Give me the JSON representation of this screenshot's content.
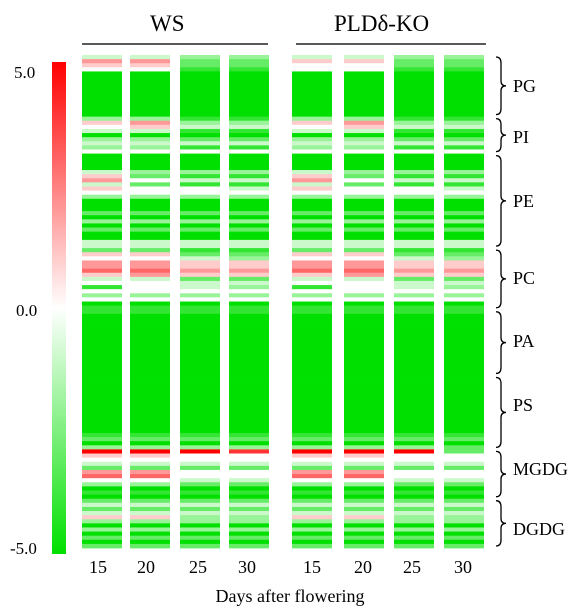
{
  "chart_data": {
    "type": "heatmap",
    "groups": [
      "WS",
      "PLDδ-KO"
    ],
    "columns": [
      "15",
      "20",
      "25",
      "30",
      "15",
      "20",
      "25",
      "30"
    ],
    "xlabel": "Days after flowering",
    "colorbar": {
      "min": -5.0,
      "max": 5.0,
      "ticks": [
        "5.0",
        "0.0",
        "-5.0"
      ],
      "low_color": "#00e000",
      "mid_color": "#ffffff",
      "high_color": "#ff0000"
    },
    "row_count": 120,
    "classes": [
      {
        "name": "PG",
        "rows": [
          0,
          15
        ]
      },
      {
        "name": "PI",
        "rows": [
          15,
          24
        ]
      },
      {
        "name": "PE",
        "rows": [
          24,
          47
        ]
      },
      {
        "name": "PC",
        "rows": [
          47,
          62
        ]
      },
      {
        "name": "PA",
        "rows": [
          62,
          78
        ]
      },
      {
        "name": "PS",
        "rows": [
          78,
          96
        ]
      },
      {
        "name": "MGDG",
        "rows": [
          96,
          108
        ]
      },
      {
        "name": "DGDG",
        "rows": [
          108,
          120
        ]
      }
    ],
    "values_default": -5,
    "cells": [
      {
        "r": 0,
        "v": [
          -1,
          -1,
          -2,
          -2,
          -1,
          -1,
          -2,
          -2
        ]
      },
      {
        "r": 1,
        "v": [
          2,
          2,
          -3,
          -3,
          1,
          1,
          -3,
          -3
        ]
      },
      {
        "r": 2,
        "v": [
          1,
          1,
          -3,
          -3,
          0,
          0,
          -3,
          -3
        ]
      },
      {
        "r": 3,
        "v": [
          0,
          0,
          -4,
          -4,
          0,
          0,
          -4,
          -4
        ]
      },
      {
        "r": 15,
        "v": [
          -2,
          -2,
          -4,
          -4,
          -2,
          -2,
          -4,
          -4
        ]
      },
      {
        "r": 16,
        "v": [
          1,
          2,
          -2,
          -2,
          1,
          2,
          -2,
          -2
        ]
      },
      {
        "r": 17,
        "v": [
          0,
          1,
          -1,
          -1,
          0,
          1,
          -1,
          -1
        ]
      },
      {
        "r": 18,
        "v": [
          -1,
          -1,
          -4,
          -4,
          -1,
          -1,
          -4,
          -4
        ]
      },
      {
        "r": 20,
        "v": [
          -2,
          -2,
          -3,
          -3,
          -2,
          -2,
          -3,
          -3
        ]
      },
      {
        "r": 21,
        "v": [
          -1,
          -1,
          -1,
          -1,
          -1,
          -1,
          -1,
          -1
        ]
      },
      {
        "r": 22,
        "v": [
          -2,
          -2,
          -4,
          -4,
          -2,
          -2,
          -4,
          -4
        ]
      },
      {
        "r": 23,
        "v": [
          0,
          0,
          0,
          0,
          0,
          0,
          0,
          0
        ]
      },
      {
        "r": 28,
        "v": [
          -1,
          -2,
          -2,
          -2,
          -1,
          -2,
          -2,
          -2
        ]
      },
      {
        "r": 29,
        "v": [
          1,
          -3,
          -4,
          -4,
          1,
          -3,
          -4,
          -4
        ]
      },
      {
        "r": 30,
        "v": [
          2,
          0,
          -1,
          -1,
          2,
          0,
          -1,
          -1
        ]
      },
      {
        "r": 31,
        "v": [
          -1,
          -3,
          -4,
          -4,
          -1,
          -3,
          -4,
          -4
        ]
      },
      {
        "r": 32,
        "v": [
          1,
          0,
          0,
          -1,
          1,
          0,
          0,
          -1
        ]
      },
      {
        "r": 33,
        "v": [
          0,
          0,
          0,
          0,
          0,
          0,
          0,
          0
        ]
      },
      {
        "r": 34,
        "v": [
          -2,
          -2,
          -2,
          -2,
          -2,
          -2,
          -2,
          -2
        ]
      },
      {
        "r": 38,
        "v": [
          -3,
          -3,
          -3,
          -3,
          -3,
          -3,
          -3,
          -3
        ]
      },
      {
        "r": 40,
        "v": [
          -2,
          -2,
          -2,
          -2,
          -2,
          -2,
          -2,
          -2
        ]
      },
      {
        "r": 42,
        "v": [
          -3,
          -3,
          -3,
          -3,
          -3,
          -3,
          -3,
          -3
        ]
      },
      {
        "r": 45,
        "v": [
          -1,
          -1,
          -1,
          -1,
          -1,
          -1,
          -1,
          -1
        ]
      },
      {
        "r": 46,
        "v": [
          -1,
          -1,
          -1,
          -1,
          -1,
          -1,
          -1,
          -1
        ]
      },
      {
        "r": 47,
        "v": [
          -3,
          -3,
          -4,
          -4,
          -3,
          -3,
          -4,
          -4
        ]
      },
      {
        "r": 48,
        "v": [
          1,
          1,
          -3,
          -3,
          1,
          1,
          -3,
          -3
        ]
      },
      {
        "r": 49,
        "v": [
          0,
          0,
          -1,
          -2,
          0,
          0,
          -1,
          -2
        ]
      },
      {
        "r": 50,
        "v": [
          2,
          2,
          1,
          1,
          2,
          2,
          1,
          1
        ]
      },
      {
        "r": 51,
        "v": [
          2,
          2,
          1,
          1,
          2,
          2,
          1,
          1
        ]
      },
      {
        "r": 52,
        "v": [
          3,
          3,
          2,
          2,
          3,
          3,
          2,
          2
        ]
      },
      {
        "r": 53,
        "v": [
          1,
          2,
          1,
          1,
          1,
          2,
          1,
          1
        ]
      },
      {
        "r": 54,
        "v": [
          -1,
          -1,
          -3,
          -3,
          -1,
          -1,
          -3,
          -3
        ]
      },
      {
        "r": 55,
        "v": [
          0,
          0,
          -1,
          -1,
          0,
          0,
          -1,
          -1
        ]
      },
      {
        "r": 56,
        "v": [
          -4,
          0,
          -1,
          -2,
          -4,
          0,
          -1,
          -2
        ]
      },
      {
        "r": 57,
        "v": [
          0,
          0,
          0,
          0,
          0,
          0,
          0,
          0
        ]
      },
      {
        "r": 58,
        "v": [
          -2,
          -2,
          -2,
          -2,
          -2,
          -2,
          -2,
          -2
        ]
      },
      {
        "r": 59,
        "v": [
          0,
          0,
          0,
          0,
          0,
          0,
          0,
          0
        ]
      },
      {
        "r": 61,
        "v": [
          -4,
          -4,
          -4,
          -4,
          -4,
          -4,
          -4,
          -4
        ]
      },
      {
        "r": 62,
        "v": [
          -4,
          -4,
          -4,
          -4,
          -4,
          -4,
          -4,
          -4
        ]
      },
      {
        "r": 92,
        "v": [
          -4,
          -4,
          -4,
          -4,
          -4,
          -4,
          -4,
          -4
        ]
      },
      {
        "r": 93,
        "v": [
          -3,
          -3,
          -3,
          -3,
          -3,
          -3,
          -3,
          -3
        ]
      },
      {
        "r": 95,
        "v": [
          -2,
          -2,
          -2,
          -2,
          -2,
          -2,
          -2,
          -3
        ]
      },
      {
        "r": 96,
        "v": [
          5,
          5,
          5,
          4,
          5,
          5,
          5,
          -3
        ]
      },
      {
        "r": 97,
        "v": [
          1,
          1,
          0,
          0,
          1,
          1,
          0,
          0
        ]
      },
      {
        "r": 98,
        "v": [
          0,
          0,
          0,
          0,
          0,
          0,
          0,
          0
        ]
      },
      {
        "r": 99,
        "v": [
          -1,
          -1,
          -1,
          -1,
          -1,
          -1,
          -1,
          -1
        ]
      },
      {
        "r": 100,
        "v": [
          -3,
          -3,
          -3,
          -3,
          -3,
          -3,
          -3,
          -3
        ]
      },
      {
        "r": 101,
        "v": [
          2,
          2,
          0,
          0,
          2,
          2,
          0,
          0
        ]
      },
      {
        "r": 102,
        "v": [
          3,
          3,
          0,
          0,
          3,
          3,
          0,
          0
        ]
      },
      {
        "r": 103,
        "v": [
          0,
          0,
          -1,
          -1,
          0,
          0,
          -1,
          -1
        ]
      },
      {
        "r": 104,
        "v": [
          -2,
          -2,
          -3,
          -3,
          -2,
          -2,
          -3,
          -3
        ]
      },
      {
        "r": 106,
        "v": [
          -4,
          -4,
          -4,
          -4,
          -4,
          -4,
          -4,
          -4
        ]
      },
      {
        "r": 108,
        "v": [
          -3,
          -3,
          -3,
          -3,
          -3,
          -3,
          -3,
          -3
        ]
      },
      {
        "r": 109,
        "v": [
          -1,
          -1,
          -1,
          -1,
          -1,
          -1,
          -1,
          -1
        ]
      },
      {
        "r": 110,
        "v": [
          -3,
          -3,
          -3,
          -3,
          -3,
          -3,
          -3,
          -3
        ]
      },
      {
        "r": 111,
        "v": [
          -1,
          -1,
          -1,
          -1,
          -1,
          -1,
          -1,
          -1
        ]
      },
      {
        "r": 112,
        "v": [
          1,
          1,
          -2,
          -2,
          1,
          1,
          -2,
          -2
        ]
      },
      {
        "r": 113,
        "v": [
          -2,
          -2,
          -2,
          -2,
          -2,
          -2,
          -2,
          -2
        ]
      },
      {
        "r": 115,
        "v": [
          -2,
          -2,
          -2,
          -2,
          -2,
          -2,
          -2,
          -2
        ]
      },
      {
        "r": 117,
        "v": [
          -3,
          -3,
          -3,
          -3,
          -3,
          -3,
          -3,
          -3
        ]
      },
      {
        "r": 119,
        "v": [
          -3,
          -3,
          -3,
          -3,
          -3,
          -3,
          -3,
          -3
        ]
      }
    ]
  }
}
